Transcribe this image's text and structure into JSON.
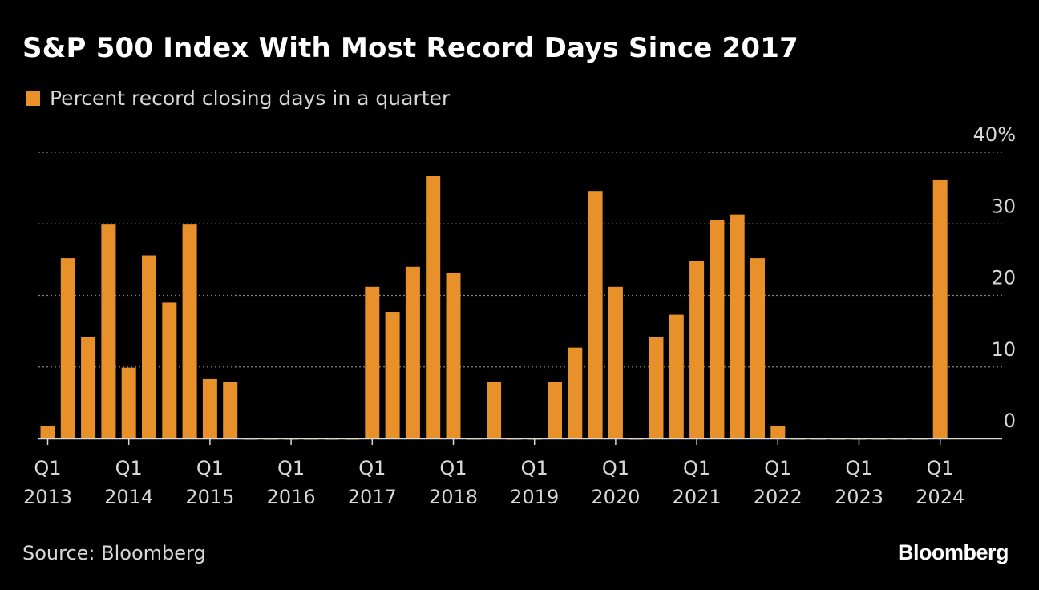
{
  "chart_data": {
    "type": "bar",
    "title": "S&P 500 Index With Most Record Days Since 2017",
    "xlabel": "",
    "ylabel": "",
    "ylim": [
      0,
      40
    ],
    "yticks": [
      0,
      10,
      20,
      30,
      40
    ],
    "ytick_labels": [
      "0",
      "10",
      "20",
      "30",
      "40%"
    ],
    "grid": true,
    "legend_position": "top-left",
    "categories": [
      "Q1 2013",
      "Q2 2013",
      "Q3 2013",
      "Q4 2013",
      "Q1 2014",
      "Q2 2014",
      "Q3 2014",
      "Q4 2014",
      "Q1 2015",
      "Q2 2015",
      "Q3 2015",
      "Q4 2015",
      "Q1 2016",
      "Q2 2016",
      "Q3 2016",
      "Q4 2016",
      "Q1 2017",
      "Q2 2017",
      "Q3 2017",
      "Q4 2017",
      "Q1 2018",
      "Q2 2018",
      "Q3 2018",
      "Q4 2018",
      "Q1 2019",
      "Q2 2019",
      "Q3 2019",
      "Q4 2019",
      "Q1 2020",
      "Q2 2020",
      "Q3 2020",
      "Q4 2020",
      "Q1 2021",
      "Q2 2021",
      "Q3 2021",
      "Q4 2021",
      "Q1 2022",
      "Q2 2022",
      "Q3 2022",
      "Q4 2022",
      "Q1 2023",
      "Q2 2023",
      "Q3 2023",
      "Q4 2023",
      "Q1 2024"
    ],
    "series": [
      {
        "name": "Percent record closing days in a quarter",
        "color": "#e8902a",
        "values": [
          1.7,
          25.2,
          14.2,
          29.9,
          9.9,
          25.6,
          19.0,
          29.9,
          8.3,
          7.9,
          0,
          0,
          0,
          0,
          0,
          0,
          21.2,
          17.7,
          24.0,
          36.7,
          23.2,
          0,
          7.9,
          0,
          0,
          7.9,
          12.7,
          34.6,
          21.2,
          0,
          14.2,
          17.3,
          24.8,
          30.5,
          31.3,
          25.2,
          1.7,
          0,
          0,
          0,
          0,
          0,
          0,
          0,
          36.2
        ]
      }
    ],
    "x_tick_labels": [
      {
        "index": 0,
        "line1": "Q1",
        "line2": "2013"
      },
      {
        "index": 4,
        "line1": "Q1",
        "line2": "2014"
      },
      {
        "index": 8,
        "line1": "Q1",
        "line2": "2015"
      },
      {
        "index": 12,
        "line1": "Q1",
        "line2": "2016"
      },
      {
        "index": 16,
        "line1": "Q1",
        "line2": "2017"
      },
      {
        "index": 20,
        "line1": "Q1",
        "line2": "2018"
      },
      {
        "index": 24,
        "line1": "Q1",
        "line2": "2019"
      },
      {
        "index": 28,
        "line1": "Q1",
        "line2": "2020"
      },
      {
        "index": 32,
        "line1": "Q1",
        "line2": "2021"
      },
      {
        "index": 36,
        "line1": "Q1",
        "line2": "2022"
      },
      {
        "index": 40,
        "line1": "Q1",
        "line2": "2023"
      },
      {
        "index": 44,
        "line1": "Q1",
        "line2": "2024"
      }
    ]
  },
  "header": {
    "title": "S&P 500 Index With Most Record Days Since 2017",
    "legend_label": "Percent record closing days in a quarter",
    "legend_color": "#e8902a"
  },
  "footer": {
    "source": "Source: Bloomberg",
    "brand": "Bloomberg"
  },
  "colors": {
    "background": "#000000",
    "bar": "#e8902a",
    "gridline": "#808080",
    "axis_text": "#d8d8d8"
  }
}
